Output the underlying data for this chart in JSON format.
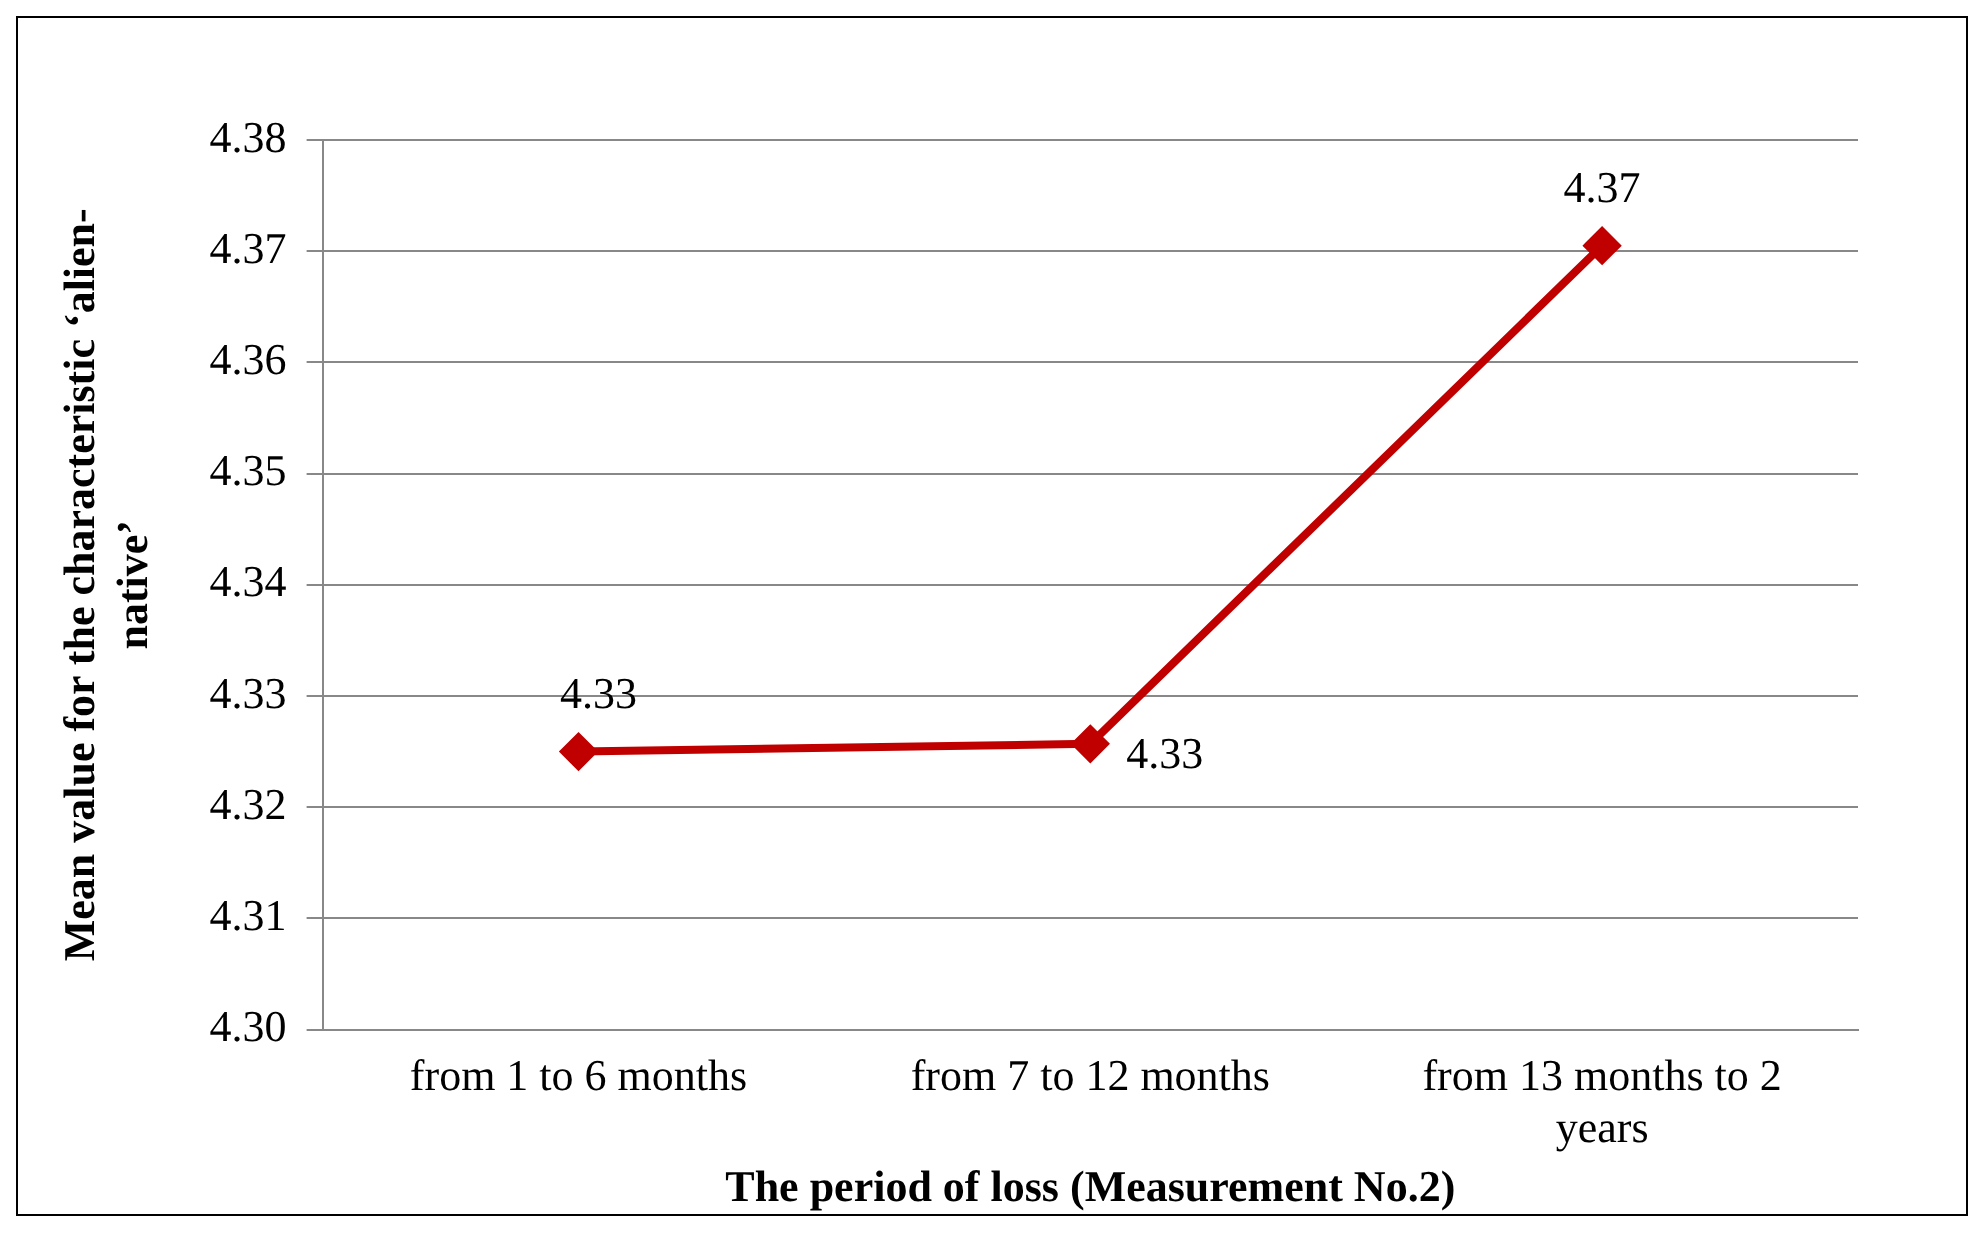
{
  "chart_data": {
    "type": "line",
    "xlabel": "The period of loss (Measurement No.2)",
    "ylabel": "Mean value for the characteristic ‘alien-native’",
    "categories": [
      "from 1 to 6 months",
      "from 7 to 12 months",
      "from 13 months to 2 years"
    ],
    "series": [
      {
        "color": "#c00000",
        "values": [
          4.325,
          4.3257,
          4.3705
        ],
        "value_labels": [
          "4.33",
          "4.33",
          "4.37"
        ]
      }
    ],
    "ylim": [
      4.3,
      4.38
    ],
    "yticks": [
      {
        "value": 4.3,
        "label": "4.30"
      },
      {
        "value": 4.31,
        "label": "4.31"
      },
      {
        "value": 4.32,
        "label": "4.32"
      },
      {
        "value": 4.33,
        "label": "4.33"
      },
      {
        "value": 4.34,
        "label": "4.34"
      },
      {
        "value": 4.35,
        "label": "4.35"
      },
      {
        "value": 4.36,
        "label": "4.36"
      },
      {
        "value": 4.37,
        "label": "4.37"
      },
      {
        "value": 4.38,
        "label": "4.38"
      }
    ],
    "grid": "y",
    "legend": false,
    "marker": "diamond",
    "line_style": "solid"
  }
}
